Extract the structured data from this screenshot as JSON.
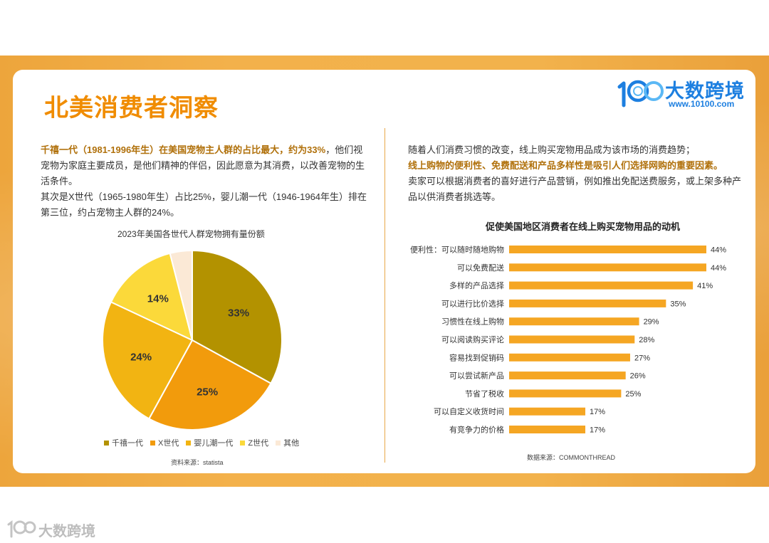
{
  "header": {
    "title": "北美消费者洞察",
    "logo_text": "大数跨境",
    "logo_url": "www.10100.com",
    "logo_mark": "100"
  },
  "left": {
    "highlight": "千禧一代（1981-1996年生）在美国宠物主人群的占比最大，约为33%",
    "text1": "，他们视宠物为家庭主要成员，是他们精神的伴侣，因此愿意为其消费，以改善宠物的生活条件。",
    "text2": "其次是X世代（1965-1980年生）占比25%，婴儿潮一代（1946-1964年生）排在第三位，约占宠物主人群的24%。",
    "source": "资料来源：statista"
  },
  "right": {
    "text1": "随着人们消费习惯的改变，线上购买宠物用品成为该市场的消费趋势；",
    "highlight": "线上购物的便利性、免费配送和产品多样性是吸引人们选择网购的重要因素。",
    "text2": "卖家可以根据消费者的喜好进行产品营销，例如推出免配送费服务，或上架多种产品以供消费者挑选等。",
    "source": "数据来源：COMMONTHREAD"
  },
  "watermark": {
    "text": "大数跨境"
  },
  "chart_data": [
    {
      "type": "pie",
      "title": "2023年美国各世代人群宠物拥有量份额",
      "labels": [
        "千禧一代",
        "X世代",
        "婴儿潮一代",
        "Z世代",
        "其他"
      ],
      "values": [
        33,
        25,
        24,
        14,
        4
      ],
      "value_labels": [
        "33%",
        "25%",
        "24%",
        "14%",
        ""
      ],
      "colors": [
        "#b39200",
        "#f29b0c",
        "#f2b412",
        "#fbd93a",
        "#fbe9d6"
      ],
      "legend_position": "bottom"
    },
    {
      "type": "bar",
      "orientation": "horizontal",
      "title": "促使美国地区消费者在线上购买宠物用品的动机",
      "categories": [
        "便利性：可以随时随地购物",
        "可以免费配送",
        "多样的产品选择",
        "可以进行比价选择",
        "习惯性在线上购物",
        "可以阅读购买评论",
        "容易找到促销码",
        "可以尝试新产品",
        "节省了税收",
        "可以自定义收货时间",
        "有竞争力的价格"
      ],
      "values": [
        44,
        44,
        41,
        35,
        29,
        28,
        27,
        26,
        25,
        17,
        17
      ],
      "value_labels": [
        "44%",
        "44%",
        "41%",
        "35%",
        "29%",
        "28%",
        "27%",
        "26%",
        "25%",
        "17%",
        "17%"
      ],
      "color": "#f5a623",
      "grid": false
    }
  ]
}
